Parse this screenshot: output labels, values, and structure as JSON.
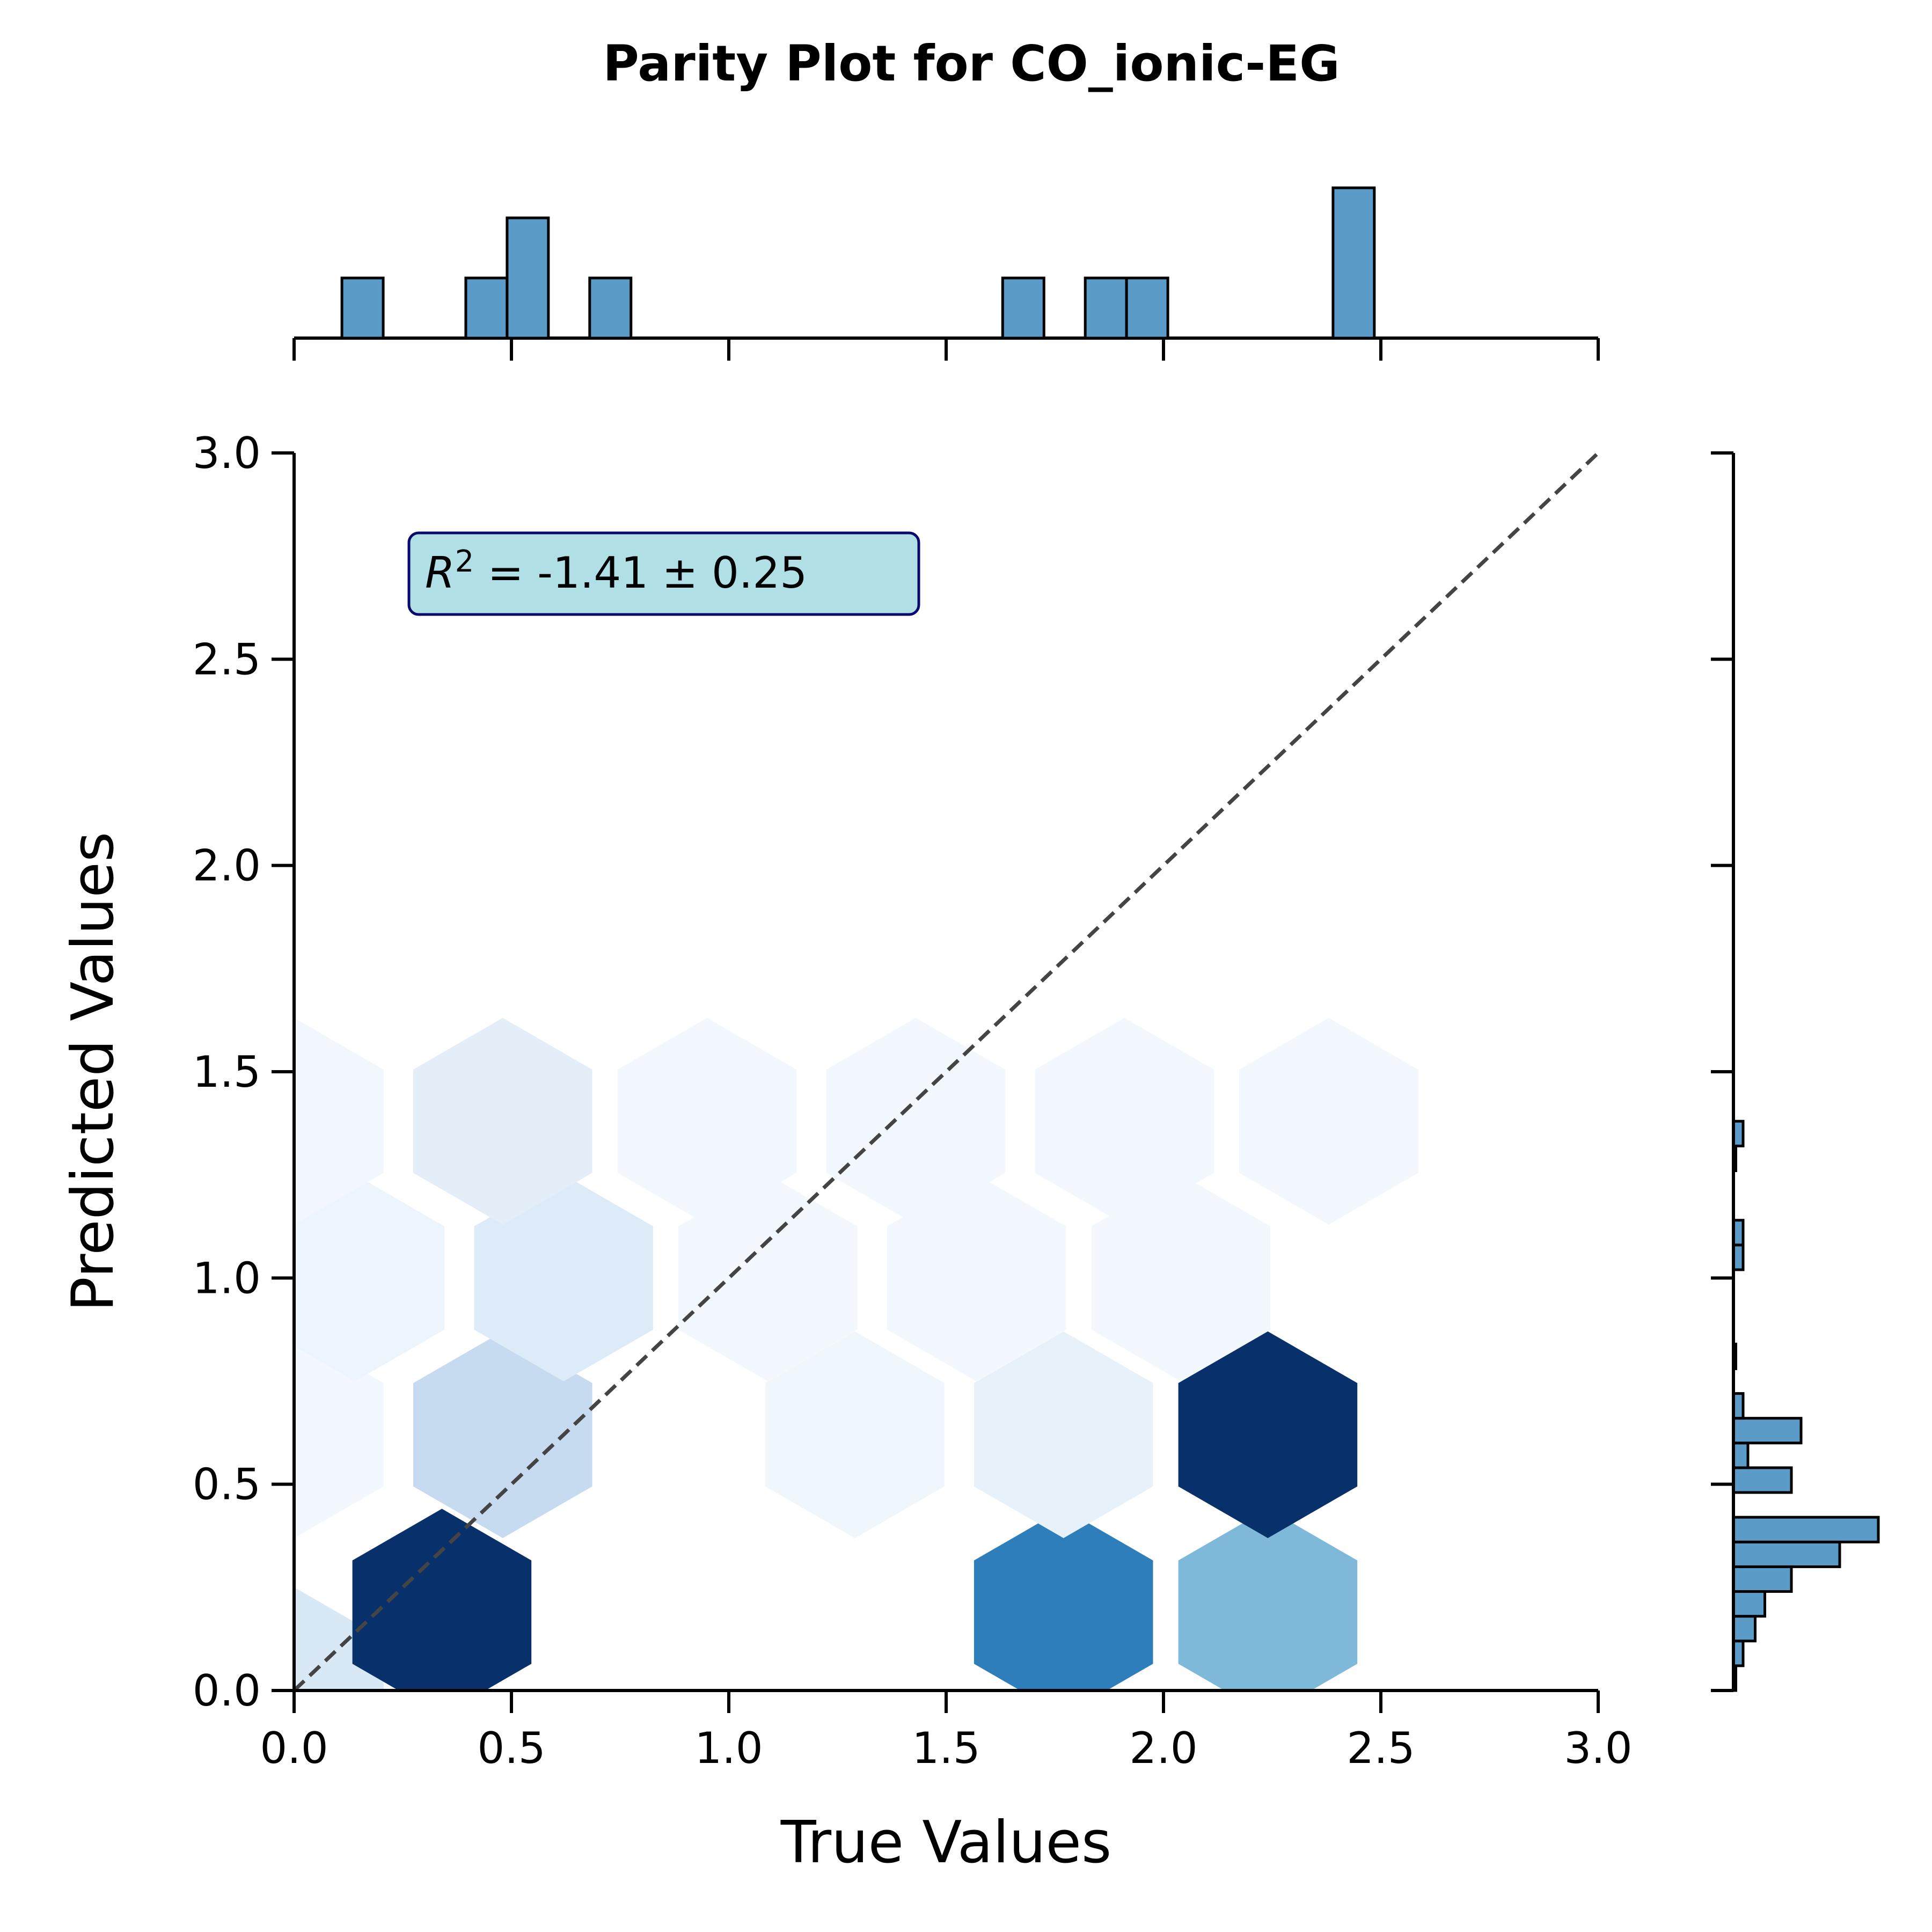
{
  "chart_data": {
    "type": "hexbin",
    "title": "Parity Plot for CO_ionic-EG",
    "xlabel": "True Values",
    "ylabel": "Predicted Values",
    "xlim": [
      0,
      3
    ],
    "ylim": [
      0,
      3
    ],
    "xticks": [
      "0.0",
      "0.5",
      "1.0",
      "1.5",
      "2.0",
      "2.5",
      "3.0"
    ],
    "yticks": [
      "0.0",
      "0.5",
      "1.0",
      "1.5",
      "2.0",
      "2.5",
      "3.0"
    ],
    "parity_line": [
      [
        0,
        0
      ],
      [
        3,
        3
      ]
    ],
    "annotation": {
      "r_symbol": "R",
      "r_exponent": "2",
      "text": " = -1.41 ± 0.25"
    },
    "hexbins": [
      {
        "x": 0.0,
        "y": 0.0,
        "intensity": 0.15
      },
      {
        "x": 0.34,
        "y": 0.19,
        "intensity": 1.0
      },
      {
        "x": 1.77,
        "y": 0.19,
        "intensity": 0.7
      },
      {
        "x": 2.24,
        "y": 0.19,
        "intensity": 0.45
      },
      {
        "x": 0.0,
        "y": 0.62,
        "intensity": 0.02
      },
      {
        "x": 0.48,
        "y": 0.62,
        "intensity": 0.25
      },
      {
        "x": 1.29,
        "y": 0.62,
        "intensity": 0.04
      },
      {
        "x": 1.77,
        "y": 0.62,
        "intensity": 0.08
      },
      {
        "x": 2.24,
        "y": 0.62,
        "intensity": 1.0
      },
      {
        "x": 0.14,
        "y": 1.0,
        "intensity": 0.05
      },
      {
        "x": 0.62,
        "y": 1.0,
        "intensity": 0.13
      },
      {
        "x": 1.09,
        "y": 1.0,
        "intensity": 0.02
      },
      {
        "x": 1.57,
        "y": 1.0,
        "intensity": 0.02
      },
      {
        "x": 2.04,
        "y": 1.0,
        "intensity": 0.02
      },
      {
        "x": 0.0,
        "y": 1.38,
        "intensity": 0.03
      },
      {
        "x": 0.48,
        "y": 1.38,
        "intensity": 0.1
      },
      {
        "x": 0.95,
        "y": 1.38,
        "intensity": 0.02
      },
      {
        "x": 1.43,
        "y": 1.38,
        "intensity": 0.02
      },
      {
        "x": 1.91,
        "y": 1.38,
        "intensity": 0.02
      },
      {
        "x": 2.38,
        "y": 1.38,
        "intensity": 0.02
      }
    ],
    "top_histogram": {
      "bin_width": 0.095,
      "bars": [
        {
          "x": 0.11,
          "count": 1
        },
        {
          "x": 0.395,
          "count": 1
        },
        {
          "x": 0.49,
          "count": 2
        },
        {
          "x": 0.68,
          "count": 1
        },
        {
          "x": 1.63,
          "count": 1
        },
        {
          "x": 1.82,
          "count": 1
        },
        {
          "x": 1.915,
          "count": 1
        },
        {
          "x": 2.39,
          "count": 2.5
        }
      ],
      "max_count": 2.5
    },
    "right_histogram": {
      "bin_width": 0.06,
      "bars": [
        {
          "y": 0.0,
          "count": 0.05
        },
        {
          "y": 0.06,
          "count": 0.2
        },
        {
          "y": 0.12,
          "count": 0.45
        },
        {
          "y": 0.18,
          "count": 0.65
        },
        {
          "y": 0.24,
          "count": 1.2
        },
        {
          "y": 0.3,
          "count": 2.2
        },
        {
          "y": 0.36,
          "count": 3.0
        },
        {
          "y": 0.48,
          "count": 1.2
        },
        {
          "y": 0.54,
          "count": 0.3
        },
        {
          "y": 0.6,
          "count": 1.4
        },
        {
          "y": 0.66,
          "count": 0.2
        },
        {
          "y": 0.78,
          "count": 0.05
        },
        {
          "y": 1.02,
          "count": 0.2
        },
        {
          "y": 1.08,
          "count": 0.2
        },
        {
          "y": 1.26,
          "count": 0.05
        },
        {
          "y": 1.32,
          "count": 0.2
        }
      ],
      "max_count": 3.0
    },
    "colors": {
      "hist_fill": "#5a9bc8",
      "hist_edge": "#000000",
      "parity_line": "#444444",
      "annot_fill": "#b0e0e6",
      "annot_edge": "#0a0a6e",
      "hex_colormap": [
        "#f7fbff",
        "#deebf7",
        "#c6dbef",
        "#9ecae1",
        "#6baed6",
        "#4292c6",
        "#2171b5",
        "#08519c",
        "#08306b"
      ]
    }
  }
}
